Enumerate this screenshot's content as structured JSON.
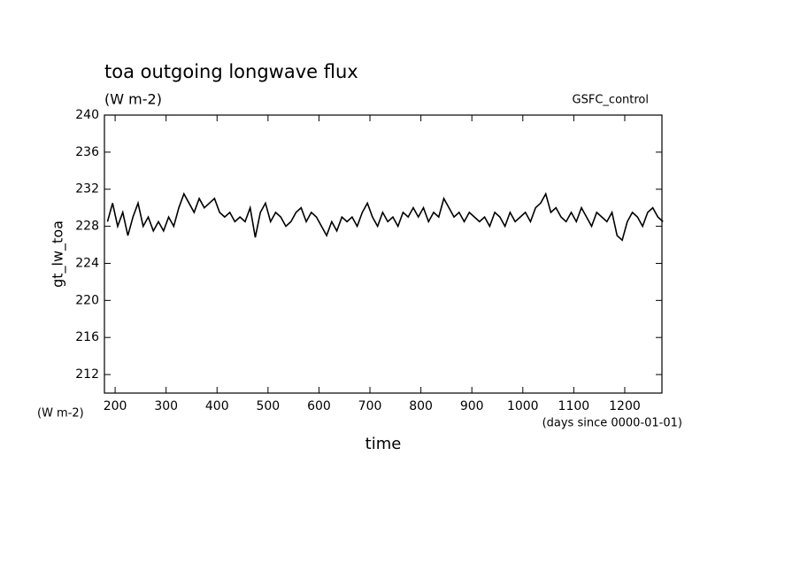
{
  "chart_data": {
    "type": "line",
    "title": "toa outgoing longwave flux",
    "subtitle": "(W m-2)",
    "annotation": "GSFC_control",
    "y_label": "gt_lw_toa",
    "y_unit": "(W m-2)",
    "x_label": "time",
    "x_unit": "(days since 0000-01-01)",
    "xlim": [
      179,
      1273
    ],
    "ylim": [
      210,
      240
    ],
    "xticks": [
      200,
      300,
      400,
      500,
      600,
      700,
      800,
      900,
      1000,
      1100,
      1200
    ],
    "yticks": [
      212,
      216,
      220,
      224,
      228,
      232,
      236,
      240
    ],
    "series": [
      {
        "color": "#000000",
        "x": [
          185,
          195,
          205,
          215,
          225,
          235,
          245,
          255,
          265,
          275,
          285,
          295,
          305,
          315,
          325,
          335,
          345,
          355,
          365,
          375,
          385,
          395,
          405,
          415,
          425,
          435,
          445,
          455,
          465,
          475,
          485,
          495,
          505,
          515,
          525,
          535,
          545,
          555,
          565,
          575,
          585,
          595,
          605,
          615,
          625,
          635,
          645,
          655,
          665,
          675,
          685,
          695,
          705,
          715,
          725,
          735,
          745,
          755,
          765,
          775,
          785,
          795,
          805,
          815,
          825,
          835,
          845,
          855,
          865,
          875,
          885,
          895,
          905,
          915,
          925,
          935,
          945,
          955,
          965,
          975,
          985,
          995,
          1005,
          1015,
          1025,
          1035,
          1045,
          1055,
          1065,
          1075,
          1085,
          1095,
          1105,
          1115,
          1125,
          1135,
          1145,
          1155,
          1165,
          1175,
          1185,
          1195,
          1205,
          1215,
          1225,
          1235,
          1245,
          1255,
          1265,
          1275
        ],
        "values": [
          228.5,
          230.5,
          228,
          229.5,
          227,
          229,
          230.5,
          228,
          229,
          227.5,
          228.5,
          227.5,
          229,
          228,
          230,
          231.5,
          230.5,
          229.5,
          231,
          230,
          230.5,
          231,
          229.5,
          229,
          229.5,
          228.5,
          229,
          228.5,
          230,
          226.8,
          229.5,
          230.5,
          228.5,
          229.5,
          229,
          228,
          228.5,
          229.5,
          230,
          228.5,
          229.5,
          229,
          228,
          227,
          228.5,
          227.5,
          229,
          228.5,
          229,
          228,
          229.5,
          230.5,
          229,
          228,
          229.5,
          228.5,
          229,
          228,
          229.5,
          229,
          230,
          229,
          230,
          228.5,
          229.5,
          229,
          231,
          230,
          229,
          229.5,
          228.5,
          229.5,
          229,
          228.5,
          229,
          228,
          229.5,
          229,
          228,
          229.5,
          228.5,
          229,
          229.5,
          228.5,
          230,
          230.5,
          231.5,
          229.5,
          230,
          229,
          228.5,
          229.5,
          228.5,
          230,
          229,
          228,
          229.5,
          229,
          228.5,
          229.5,
          227,
          226.5,
          228.5,
          229.5,
          229,
          228,
          229.5,
          230,
          229,
          228.5
        ]
      }
    ]
  }
}
